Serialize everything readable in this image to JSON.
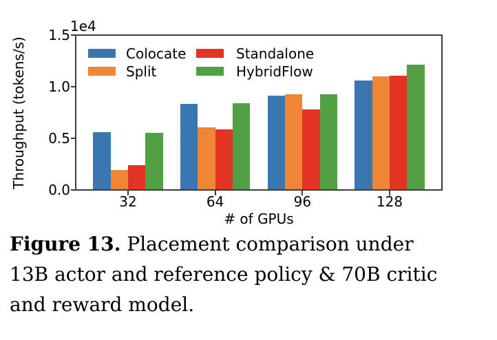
{
  "chart_data": {
    "type": "bar",
    "title": "",
    "xlabel": "# of GPUs",
    "ylabel": "Throughput (tokens/s)",
    "y_offset_label": "1e4",
    "categories": [
      "32",
      "64",
      "96",
      "128"
    ],
    "series": [
      {
        "name": "Colocate",
        "color": "#3A76B0",
        "values": [
          5600,
          8350,
          9150,
          10600
        ]
      },
      {
        "name": "Split",
        "color": "#EE8636",
        "values": [
          1950,
          6100,
          9300,
          11000
        ]
      },
      {
        "name": "Standalone",
        "color": "#E23422",
        "values": [
          2400,
          5900,
          7800,
          11100
        ]
      },
      {
        "name": "HybridFlow",
        "color": "#52A044",
        "values": [
          5550,
          8400,
          9280,
          12150
        ]
      }
    ],
    "ylim": [
      0,
      15000
    ],
    "yticks": [
      {
        "label": "0.0",
        "value": 0
      },
      {
        "label": "0.5",
        "value": 5000
      },
      {
        "label": "1.0",
        "value": 10000
      },
      {
        "label": "1.5",
        "value": 15000
      }
    ],
    "grid": false,
    "legend_position": "upper left",
    "legend_columns": 2,
    "axis_color": "#3C3C3C"
  },
  "caption": {
    "label": "Figure 13.",
    "line1": "Placement comparison under",
    "line2": "13B actor and reference policy & 70B critic",
    "line3": "and reward model.",
    "full_text": "Figure 13. Placement comparison under 13B actor and reference policy & 70B critic and reward model."
  }
}
